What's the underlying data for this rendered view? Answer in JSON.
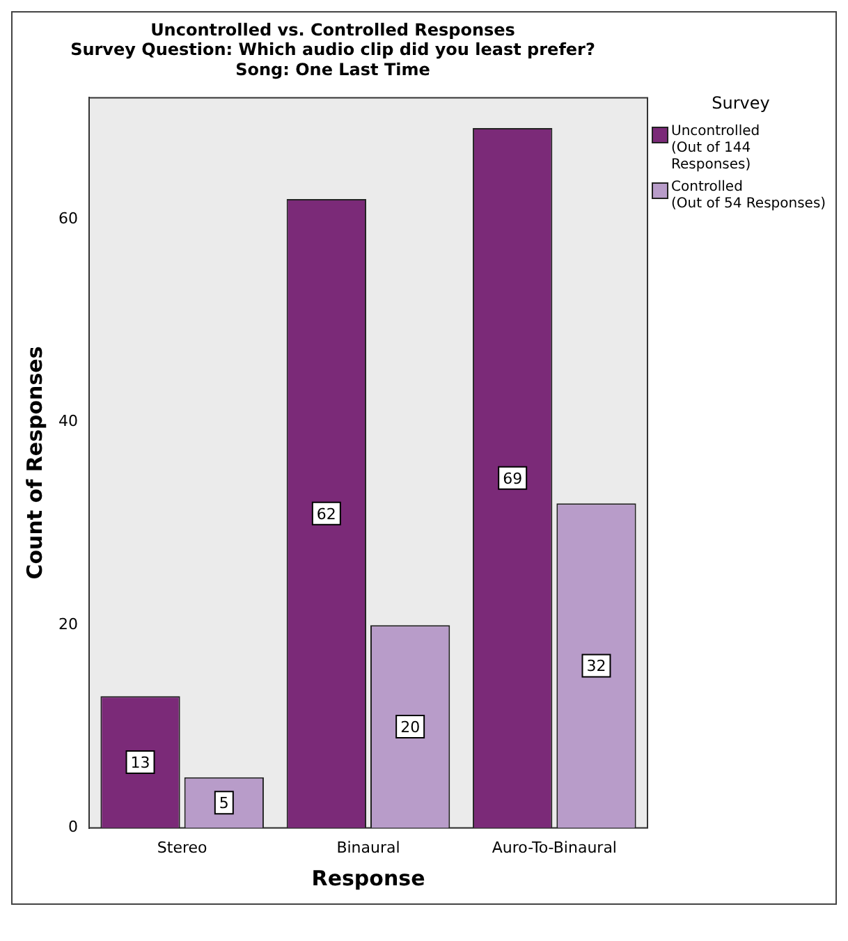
{
  "chart_data": {
    "type": "bar",
    "title": "Uncontrolled vs. Controlled Responses",
    "subtitle": "Survey Question: Which audio clip did you least prefer?\nSong: One Last Time",
    "xlabel": "Response",
    "ylabel": "Count of Responses",
    "legend_title": "Survey",
    "categories": [
      "Stereo",
      "Binaural",
      "Auro-To-Binaural"
    ],
    "series": [
      {
        "name": "Uncontrolled\n(Out of 144 Responses)",
        "color": "#7b2a78",
        "values": [
          13,
          62,
          69
        ]
      },
      {
        "name": "Controlled\n(Out of 54 Responses)",
        "color": "#b89cc9",
        "values": [
          5,
          20,
          32
        ]
      }
    ],
    "ylim": [
      0,
      72
    ],
    "yticks": [
      0,
      20,
      40,
      60
    ],
    "grid": false,
    "legend": "top right",
    "data_labels": true
  }
}
